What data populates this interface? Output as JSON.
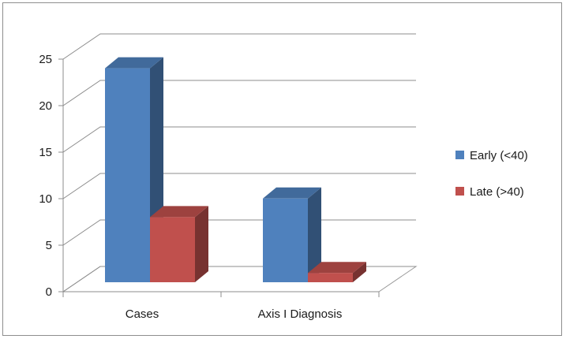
{
  "chart_data": {
    "type": "bar",
    "style": "3d-clustered-column",
    "title": "",
    "xlabel": "",
    "ylabel": "",
    "categories": [
      "Cases",
      "Axis I Diagnosis"
    ],
    "series": [
      {
        "name": "Early (<40)",
        "values": [
          23,
          9
        ],
        "color": "#4F81BD"
      },
      {
        "name": "Late (>40)",
        "values": [
          7,
          1
        ],
        "color": "#C0504D"
      }
    ],
    "ylim": [
      0,
      25
    ],
    "yticks": [
      0,
      5,
      10,
      15,
      20,
      25
    ],
    "grid": true,
    "legend_position": "right"
  }
}
